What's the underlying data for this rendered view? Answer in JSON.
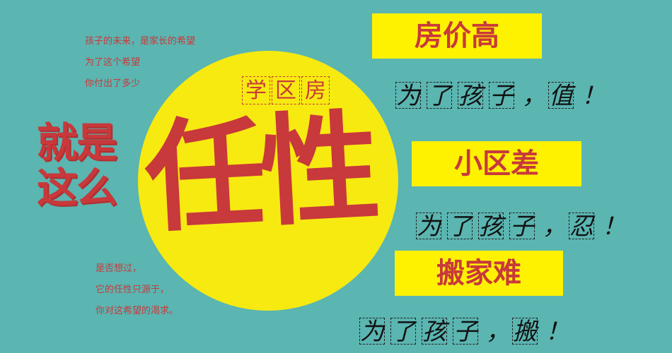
{
  "top_left_text": {
    "line1": "孩子的未来，是家长的希望",
    "line2": "为了这个希望",
    "line3": "你付出了多少"
  },
  "slogan_left": {
    "line1": "就是",
    "line2": "这么"
  },
  "circle": {
    "small_chars": [
      "学",
      "区",
      "房"
    ],
    "big_text": "任性"
  },
  "bottom_left_text": {
    "line1": "是否想过，",
    "line2": "它的任性只源于，",
    "line3": "你对这希望的渴求。"
  },
  "panels": [
    {
      "label": "房价高",
      "chars": [
        "为",
        "了",
        "孩",
        "子"
      ],
      "comma": "，",
      "end_char": "值",
      "exclaim": "！"
    },
    {
      "label": "小区差",
      "chars": [
        "为",
        "了",
        "孩",
        "子"
      ],
      "comma": "，",
      "end_char": "忍",
      "exclaim": "！"
    },
    {
      "label": "搬家难",
      "chars": [
        "为",
        "了",
        "孩",
        "子"
      ],
      "comma": "，",
      "end_char": "搬",
      "exclaim": "！"
    }
  ],
  "colors": {
    "background": "#5bb5b1",
    "circle": "#f7ea11",
    "accent_red": "#c8393b",
    "label_yellow": "#fff200"
  }
}
